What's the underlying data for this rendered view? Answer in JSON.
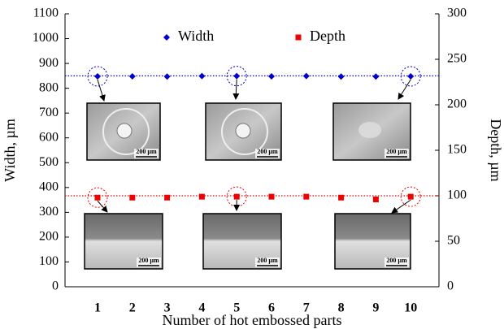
{
  "chart_data": {
    "type": "scatter",
    "x_label": "Number of  hot embossed parts",
    "y_label": "Width, µm",
    "y2_label": "Depth, µm",
    "categories": [
      "1",
      "2",
      "3",
      "4",
      "5",
      "6",
      "7",
      "8",
      "9",
      "10"
    ],
    "series": [
      {
        "name": "Width",
        "color": "#0000cc",
        "marker": "diamond",
        "values": [
          848,
          848,
          847,
          849,
          849,
          848,
          849,
          847,
          847,
          848
        ]
      },
      {
        "name": "Depth",
        "color": "#ee0000",
        "marker": "square",
        "axis": "y2",
        "values": [
          98,
          98,
          98,
          99,
          99,
          99,
          99,
          98,
          96,
          99
        ]
      }
    ],
    "hlines": [
      {
        "axis": "y",
        "value": 850,
        "color": "#0000cc"
      },
      {
        "axis": "y2",
        "value": 100,
        "color": "#ee0000"
      }
    ],
    "ylim": [
      0,
      1100
    ],
    "yticks": [
      0,
      100,
      200,
      300,
      400,
      500,
      600,
      700,
      800,
      900,
      1000,
      1100
    ],
    "y2lim": [
      0,
      300
    ],
    "y2ticks": [
      0,
      50,
      100,
      150,
      200,
      250,
      300
    ],
    "legend": "top",
    "inset_labels": [
      "200 µm",
      "200 µm",
      "200 µm",
      "200 µm",
      "200 µm",
      "200 µm"
    ]
  }
}
